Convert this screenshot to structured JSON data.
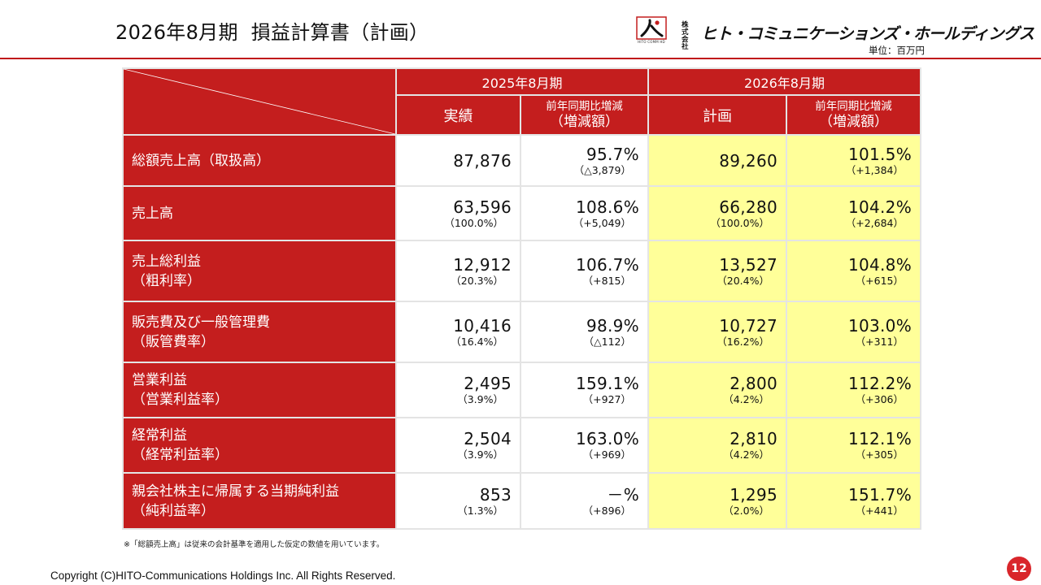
{
  "header": {
    "title": "2026年8月期  損益計算書（計画）",
    "unit": "単位：百万円"
  },
  "logo": {
    "mark_text": "HITO COMM HD",
    "kabushiki": "株式会社",
    "name": "ヒト・コミュニケーションズ・ホールディングス"
  },
  "table": {
    "periods": [
      "2025年8月期",
      "2026年8月期"
    ],
    "columns": {
      "actual": "実績",
      "yoy_line1": "前年同期比増減",
      "yoy_line2": "（増減額）",
      "plan": "計画"
    },
    "rows": [
      {
        "label1": "総額売上高（取扱高）",
        "label2": "",
        "actual": "87,876",
        "actual_sub": "",
        "yoy": "95.7%",
        "yoy_sub": "（△3,879）",
        "plan": "89,260",
        "plan_sub": "",
        "plan_yoy": "101.5%",
        "plan_yoy_sub": "（+1,384）"
      },
      {
        "label1": "売上高",
        "label2": "",
        "actual": "63,596",
        "actual_sub": "（100.0%）",
        "yoy": "108.6%",
        "yoy_sub": "（+5,049）",
        "plan": "66,280",
        "plan_sub": "（100.0%）",
        "plan_yoy": "104.2%",
        "plan_yoy_sub": "（+2,684）"
      },
      {
        "label1": "売上総利益",
        "label2": "（粗利率）",
        "actual": "12,912",
        "actual_sub": "（20.3%）",
        "yoy": "106.7%",
        "yoy_sub": "（+815）",
        "plan": "13,527",
        "plan_sub": "（20.4%）",
        "plan_yoy": "104.8%",
        "plan_yoy_sub": "（+615）"
      },
      {
        "label1": "販売費及び一般管理費",
        "label2": "（販管費率）",
        "actual": "10,416",
        "actual_sub": "（16.4%）",
        "yoy": "98.9%",
        "yoy_sub": "（△112）",
        "plan": "10,727",
        "plan_sub": "（16.2%）",
        "plan_yoy": "103.0%",
        "plan_yoy_sub": "（+311）"
      },
      {
        "label1": "営業利益",
        "label2": "（営業利益率）",
        "actual": "2,495",
        "actual_sub": "（3.9%）",
        "yoy": "159.1%",
        "yoy_sub": "（+927）",
        "plan": "2,800",
        "plan_sub": "（4.2%）",
        "plan_yoy": "112.2%",
        "plan_yoy_sub": "（+306）"
      },
      {
        "label1": "経常利益",
        "label2": "（経常利益率）",
        "actual": "2,504",
        "actual_sub": "（3.9%）",
        "yoy": "163.0%",
        "yoy_sub": "（+969）",
        "plan": "2,810",
        "plan_sub": "（4.2%）",
        "plan_yoy": "112.1%",
        "plan_yoy_sub": "（+305）"
      },
      {
        "label1": "親会社株主に帰属する当期純利益",
        "label2": "（純利益率）",
        "actual": "853",
        "actual_sub": "（1.3%）",
        "yoy": "－%",
        "yoy_sub": "（+896）",
        "plan": "1,295",
        "plan_sub": "（2.0%）",
        "plan_yoy": "151.7%",
        "plan_yoy_sub": "（+441）"
      }
    ]
  },
  "footnote": "※「総額売上高」は従来の会計基準を適用した仮定の数値を用いています。",
  "footer": {
    "copyright": "Copyright (C)HITO-Communications Holdings Inc. All Rights Reserved.",
    "page_number": "12"
  },
  "colors": {
    "header_red": "#c41e1e",
    "plan_highlight": "#ffff99",
    "rule_red": "#c0161b",
    "badge_red": "#d9262b"
  }
}
